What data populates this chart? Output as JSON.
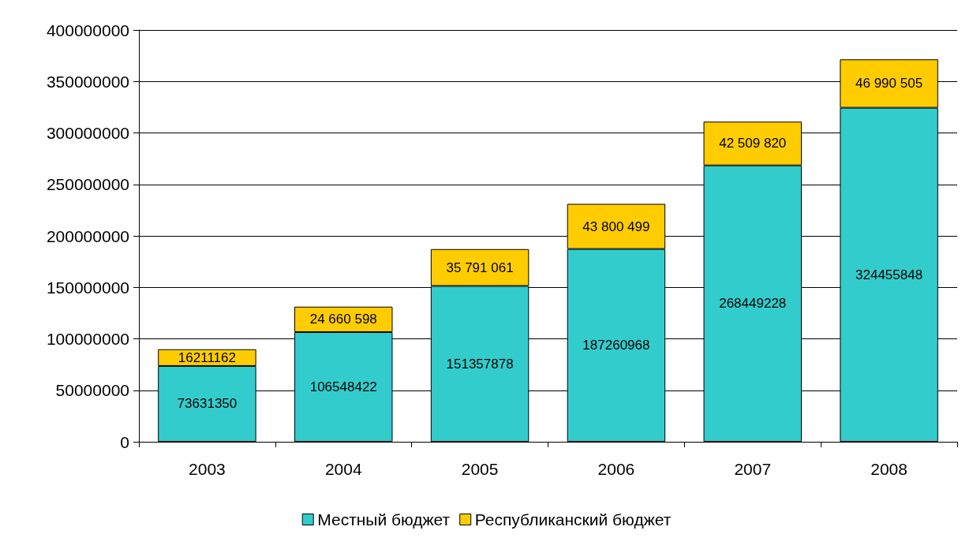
{
  "chart_data": {
    "type": "bar",
    "stacked": true,
    "categories": [
      "2003",
      "2004",
      "2005",
      "2006",
      "2007",
      "2008"
    ],
    "series": [
      {
        "name": "Местный бюджет",
        "color": "#33cccc",
        "values": [
          73631350,
          106548422,
          151357878,
          187260968,
          268449228,
          324455848
        ],
        "value_labels": [
          "73631350",
          "106548422",
          "151357878",
          "187260968",
          "268449228",
          "324455848"
        ]
      },
      {
        "name": "Республиканский бюджет",
        "color": "#ffcc00",
        "values": [
          16211162,
          24660598,
          35791061,
          43800499,
          42509820,
          46990505
        ],
        "value_labels": [
          "16211162",
          "24 660 598",
          "35 791 061",
          "43 800 499",
          "42 509 820",
          "46 990 505"
        ]
      }
    ],
    "ylim": [
      0,
      400000000
    ],
    "yticks": [
      0,
      50000000,
      100000000,
      150000000,
      200000000,
      250000000,
      300000000,
      350000000,
      400000000
    ],
    "grid": "y",
    "legend": "bottom"
  }
}
